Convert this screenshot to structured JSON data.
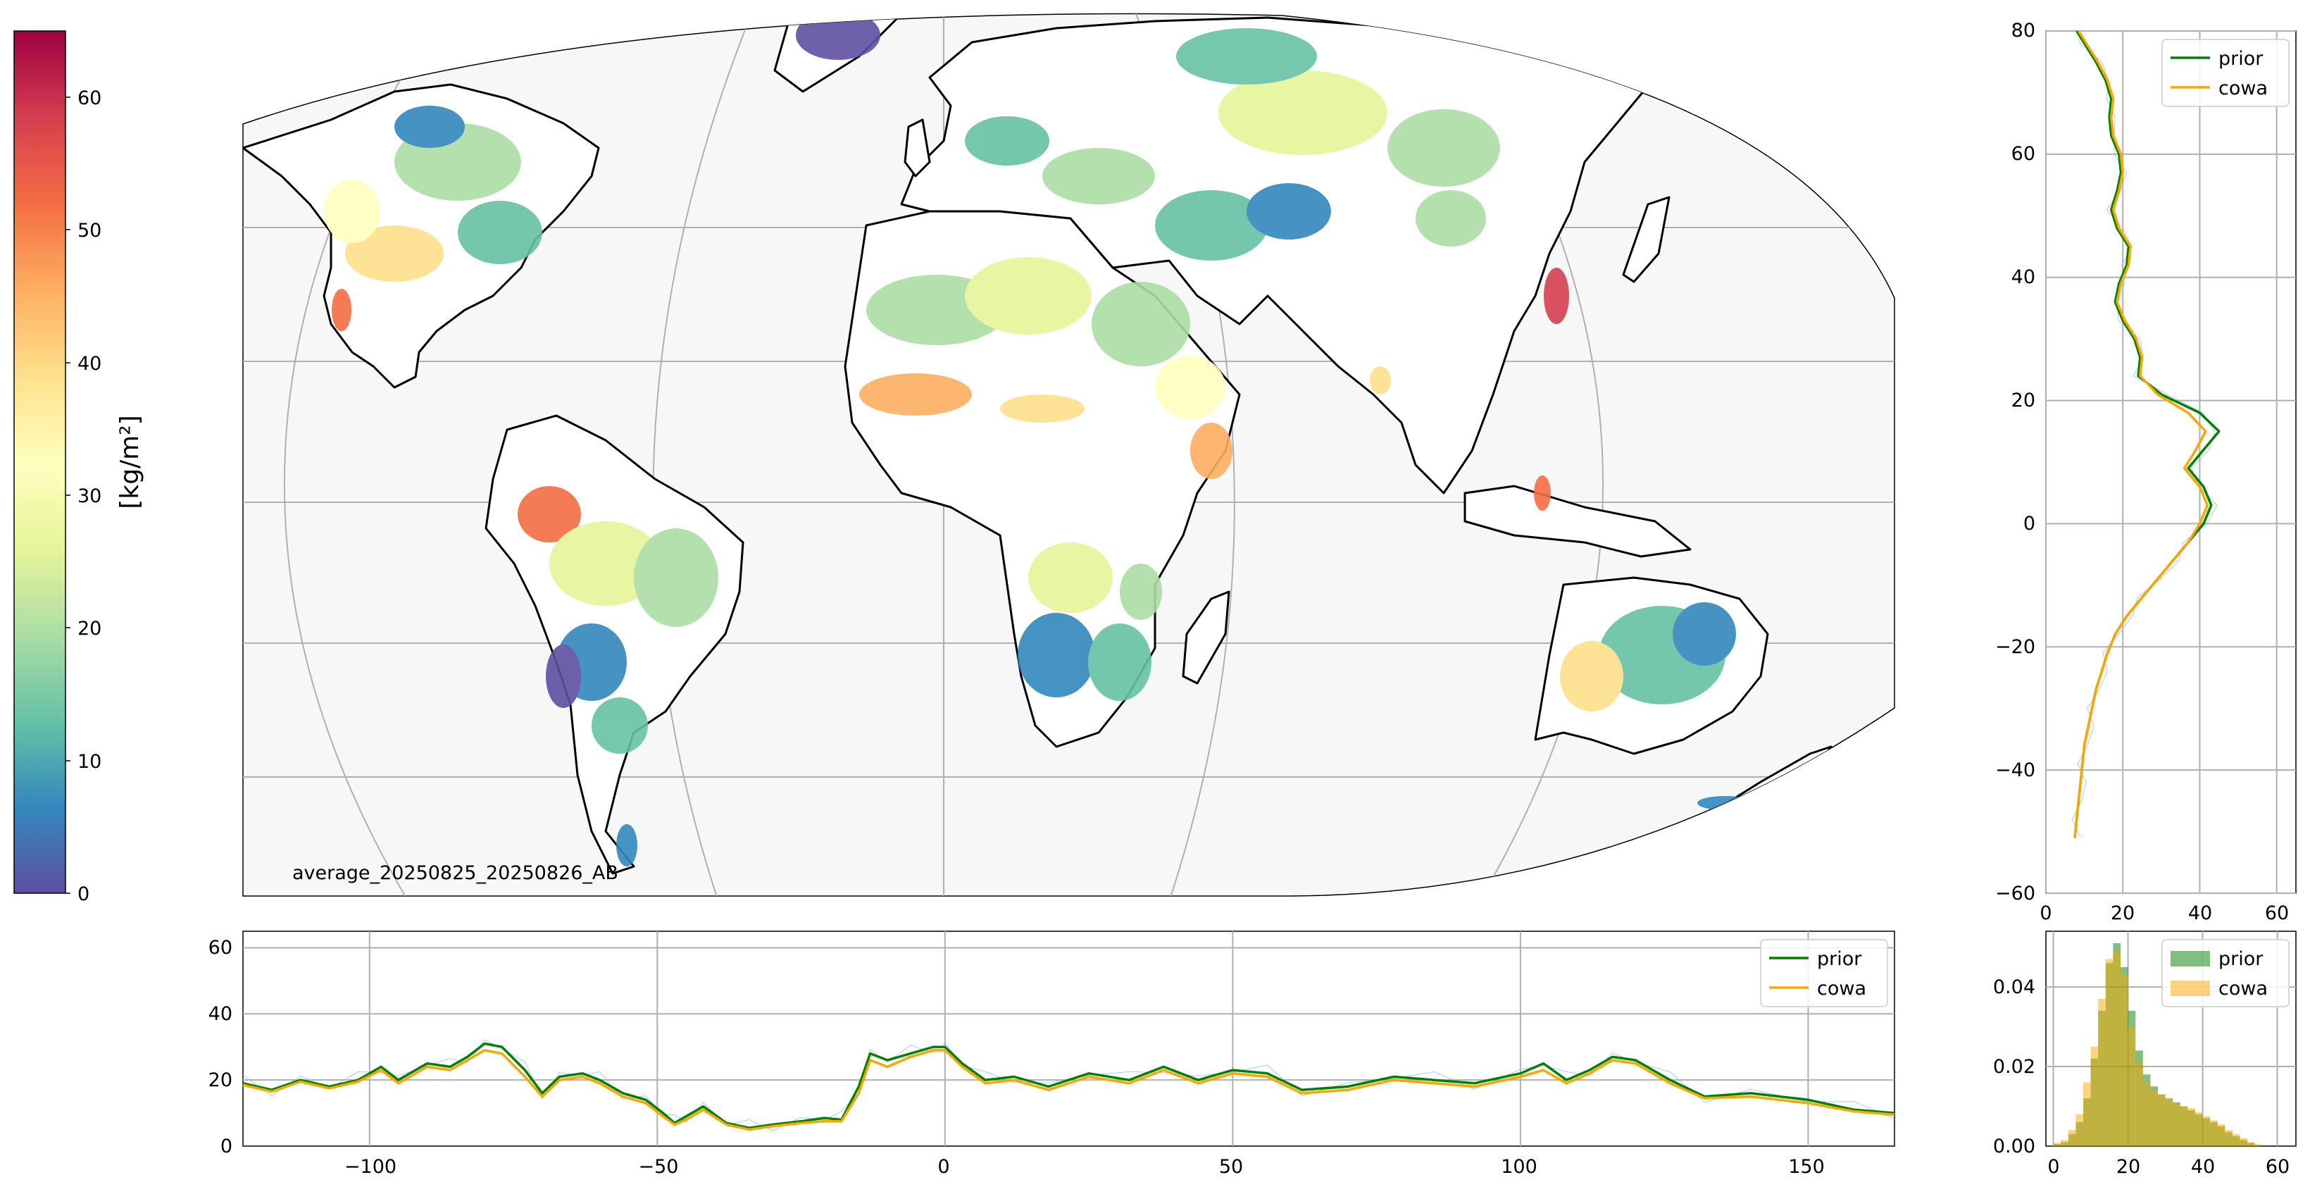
{
  "colors": {
    "prior": "#008000",
    "cowa": "#ffa500",
    "grid": "#b0b0b0",
    "map_background": "#f7f7f7",
    "land": "#ffffff",
    "thin_observations": "#7fb8e6"
  },
  "colorbar": {
    "label": "[kg/m²]",
    "colormap": "Spectral_r",
    "ticks": [
      "0",
      "10",
      "20",
      "30",
      "40",
      "50",
      "60"
    ],
    "range": [
      0,
      65
    ]
  },
  "map": {
    "annotation": "average_20250825_20250826_AB",
    "projection": "pseudo-cylindrical (Eckert IV-like), central longitude 0",
    "coastline_color": "#000000",
    "gridlines": true
  },
  "chart_data": [
    {
      "id": "latitude_profile",
      "type": "line",
      "orientation": "vertical",
      "xlim": [
        0,
        65
      ],
      "ylim": [
        -60,
        80
      ],
      "xticks": [
        "0",
        "20",
        "40",
        "60"
      ],
      "yticks": [
        "−60",
        "−40",
        "−20",
        "0",
        "20",
        "40",
        "60",
        "80"
      ],
      "grid": true,
      "legend": "top-right",
      "series": [
        {
          "name": "prior",
          "y": [
            -51,
            -48,
            -45,
            -42,
            -39,
            -36,
            -33,
            -30,
            -27,
            -24,
            -21,
            -18,
            -15,
            -12,
            -9,
            -6,
            -3,
            0,
            3,
            6,
            9,
            12,
            15,
            18,
            21,
            24,
            27,
            30,
            33,
            36,
            39,
            42,
            45,
            48,
            51,
            54,
            57,
            60,
            63,
            66,
            69,
            72,
            75,
            78,
            80
          ],
          "x": [
            7.5,
            8,
            8.5,
            9,
            9.5,
            10,
            11,
            12,
            13,
            14.5,
            16,
            18,
            21,
            25,
            29,
            33,
            37,
            41,
            43,
            41,
            37,
            41,
            45,
            40,
            30,
            24,
            24.5,
            23,
            20,
            18,
            19,
            21,
            21.5,
            18.5,
            17,
            18.5,
            19.5,
            19,
            17,
            16.5,
            17,
            15.5,
            13,
            10,
            8
          ]
        },
        {
          "name": "cowa",
          "y": [
            -51,
            -48,
            -45,
            -42,
            -39,
            -36,
            -33,
            -30,
            -27,
            -24,
            -21,
            -18,
            -15,
            -12,
            -9,
            -6,
            -3,
            0,
            3,
            6,
            9,
            12,
            15,
            18,
            21,
            24,
            27,
            30,
            33,
            36,
            39,
            42,
            45,
            48,
            51,
            54,
            57,
            60,
            63,
            66,
            69,
            72,
            75,
            78,
            80
          ],
          "x": [
            7.5,
            8,
            8.5,
            9,
            9.5,
            10,
            11,
            12,
            13,
            14.5,
            16,
            18,
            21,
            25,
            29,
            33,
            37,
            40,
            42,
            40,
            36,
            39,
            41.5,
            37,
            29,
            24.5,
            25,
            23.5,
            20.5,
            18.5,
            19.5,
            21.5,
            22,
            19,
            17.5,
            19,
            20,
            19.5,
            17.5,
            17,
            17.5,
            16,
            13.5,
            10.5,
            8.5
          ]
        }
      ]
    },
    {
      "id": "longitude_profile",
      "type": "line",
      "xlim": [
        -122,
        165
      ],
      "ylim": [
        0,
        65
      ],
      "xticks": [
        "−100",
        "−50",
        "0",
        "50",
        "100",
        "150"
      ],
      "yticks": [
        "0",
        "20",
        "40",
        "60"
      ],
      "grid": true,
      "legend": "top-right",
      "series": [
        {
          "name": "prior",
          "x": [
            -122,
            -117,
            -112,
            -107,
            -102,
            -98,
            -95,
            -90,
            -86,
            -83,
            -80,
            -77,
            -73,
            -70,
            -67,
            -63,
            -60,
            -56,
            -52,
            -49,
            -47,
            -45,
            -42,
            -38,
            -34,
            -30,
            -25,
            -21,
            -18,
            -15,
            -13,
            -10,
            -6,
            -2,
            0,
            3,
            7,
            12,
            18,
            25,
            32,
            38,
            44,
            50,
            56,
            62,
            70,
            78,
            85,
            92,
            100,
            104,
            108,
            112,
            116,
            120,
            126,
            132,
            140,
            150,
            158,
            165
          ],
          "y": [
            19,
            17,
            20,
            18,
            20,
            24,
            20,
            25,
            24,
            27,
            31,
            30,
            23,
            16,
            21,
            22,
            20,
            16,
            14,
            10,
            7,
            9,
            12,
            7,
            5.5,
            6.5,
            7.5,
            8.5,
            8,
            18,
            28,
            26,
            28,
            30,
            30,
            25,
            20,
            21,
            18,
            22,
            20,
            24,
            20,
            23,
            22,
            17,
            18,
            21,
            20,
            19,
            22,
            25,
            20,
            23,
            27,
            26,
            20,
            15,
            16,
            14,
            11,
            10
          ]
        },
        {
          "name": "cowa",
          "x": [
            -122,
            -117,
            -112,
            -107,
            -102,
            -98,
            -95,
            -90,
            -86,
            -83,
            -80,
            -77,
            -73,
            -70,
            -67,
            -63,
            -60,
            -56,
            -52,
            -49,
            -47,
            -45,
            -42,
            -38,
            -34,
            -30,
            -25,
            -21,
            -18,
            -15,
            -13,
            -10,
            -6,
            -2,
            0,
            3,
            7,
            12,
            18,
            25,
            32,
            38,
            44,
            50,
            56,
            62,
            70,
            78,
            85,
            92,
            100,
            104,
            108,
            112,
            116,
            120,
            126,
            132,
            140,
            150,
            158,
            165
          ],
          "y": [
            18.5,
            16.5,
            19.5,
            17.5,
            19.5,
            23,
            19,
            24,
            23,
            26,
            29,
            28,
            21,
            15,
            20,
            21,
            19,
            15,
            13,
            9,
            6.5,
            8,
            11,
            6.5,
            5,
            6,
            7,
            7.5,
            7.5,
            16,
            26,
            24,
            27,
            29,
            29,
            24,
            19,
            20,
            17,
            21,
            19,
            23,
            19,
            22,
            21,
            16,
            17,
            20,
            19,
            18,
            21,
            23,
            19,
            22,
            26,
            25,
            19,
            14.5,
            15,
            13,
            10.5,
            9.5
          ]
        }
      ]
    },
    {
      "id": "histogram",
      "type": "bar",
      "xlim": [
        -2,
        65
      ],
      "ylim": [
        0,
        0.054
      ],
      "xticks": [
        "0",
        "20",
        "40",
        "60"
      ],
      "yticks": [
        "0.00",
        "0.02",
        "0.04"
      ],
      "grid": true,
      "legend": "top-right",
      "bin_width": 2,
      "bin_starts": [
        0,
        2,
        4,
        6,
        8,
        10,
        12,
        14,
        16,
        18,
        20,
        22,
        24,
        26,
        28,
        30,
        32,
        34,
        36,
        38,
        40,
        42,
        44,
        46,
        48,
        50,
        52,
        54
      ],
      "series": [
        {
          "name": "prior",
          "values": [
            0.0005,
            0.001,
            0.003,
            0.006,
            0.012,
            0.022,
            0.034,
            0.046,
            0.051,
            0.045,
            0.034,
            0.024,
            0.018,
            0.015,
            0.013,
            0.012,
            0.011,
            0.01,
            0.009,
            0.008,
            0.007,
            0.006,
            0.005,
            0.0035,
            0.0025,
            0.0015,
            0.0008,
            0.0003
          ]
        },
        {
          "name": "cowa",
          "values": [
            0.0008,
            0.0015,
            0.004,
            0.008,
            0.016,
            0.025,
            0.037,
            0.047,
            0.049,
            0.043,
            0.03,
            0.021,
            0.016,
            0.014,
            0.013,
            0.012,
            0.011,
            0.01,
            0.0095,
            0.0085,
            0.0075,
            0.0065,
            0.0055,
            0.004,
            0.003,
            0.002,
            0.001,
            0.0004
          ]
        }
      ]
    }
  ]
}
